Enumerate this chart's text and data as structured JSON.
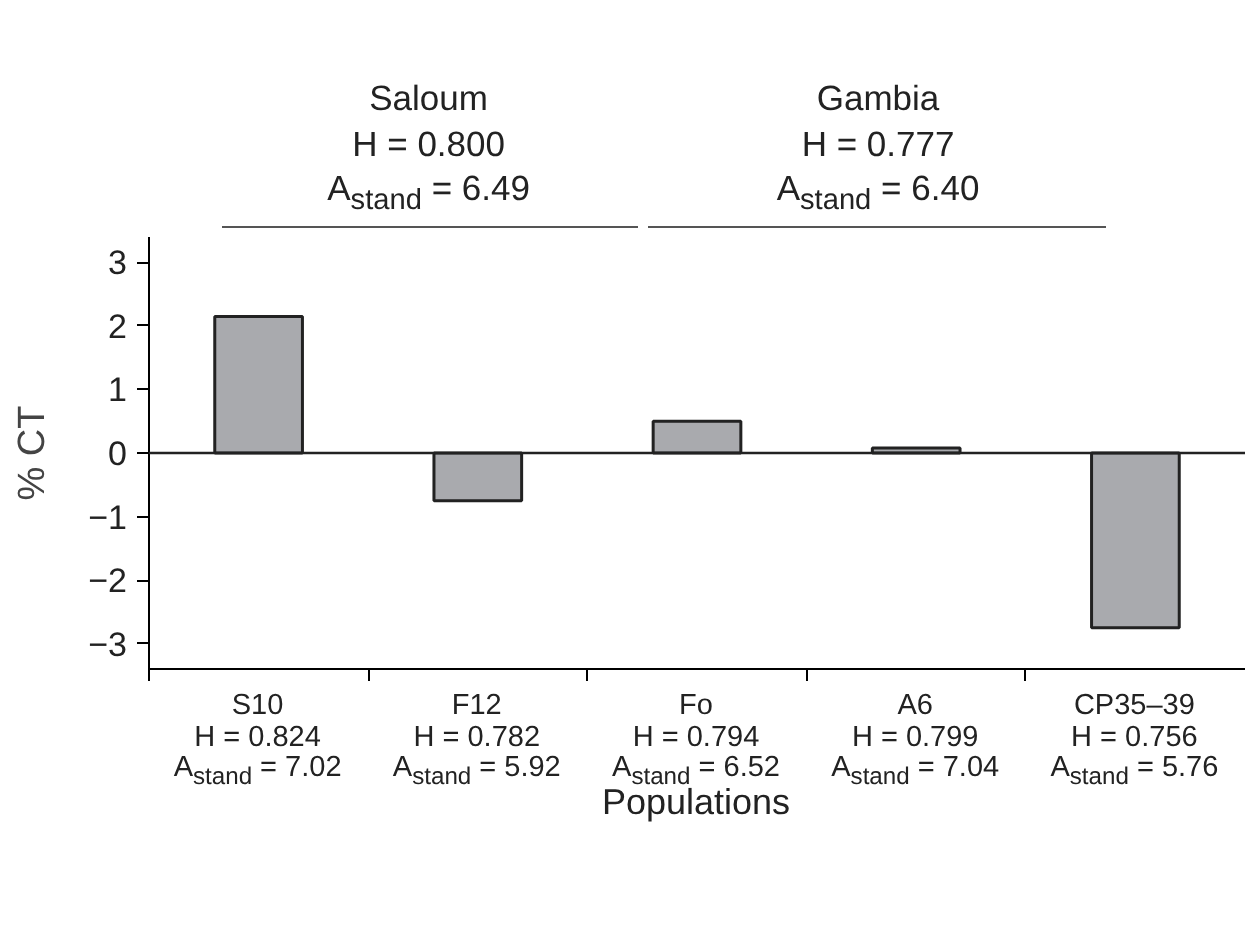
{
  "chart_data": {
    "type": "bar",
    "xlabel": "Populations",
    "ylabel": "% CT",
    "categories": [
      "S10\nH = 0.824\nA$_{stand}$ = 7.02",
      "F12\nH = 0.782\nA$_{stand}$ = 5.92",
      "Fo\nH = 0.794\nA$_{stand}$ = 6.52",
      "A6\nH = 0.799\nA$_{stand}$ = 7.04",
      "CP35–39\nH = 0.756\nA$_{stand}$ = 5.76"
    ],
    "values": [
      2.15,
      -0.75,
      0.5,
      0.08,
      -2.75
    ],
    "color": "#a9aaae",
    "ylim": [
      -3.4,
      3.4
    ],
    "yticks": [
      -3,
      -2,
      -1,
      0,
      1,
      2,
      3
    ],
    "grid": false,
    "ref_lines": [
      {
        "axis": "y",
        "value": 0,
        "color": "#222222"
      }
    ],
    "annotations": [
      "Saloum\nH = 0.800\nA$_{stand}$ = 6.49",
      "Gambia\nH = 0.777\nA$_{stand}$ = 6.40"
    ]
  }
}
